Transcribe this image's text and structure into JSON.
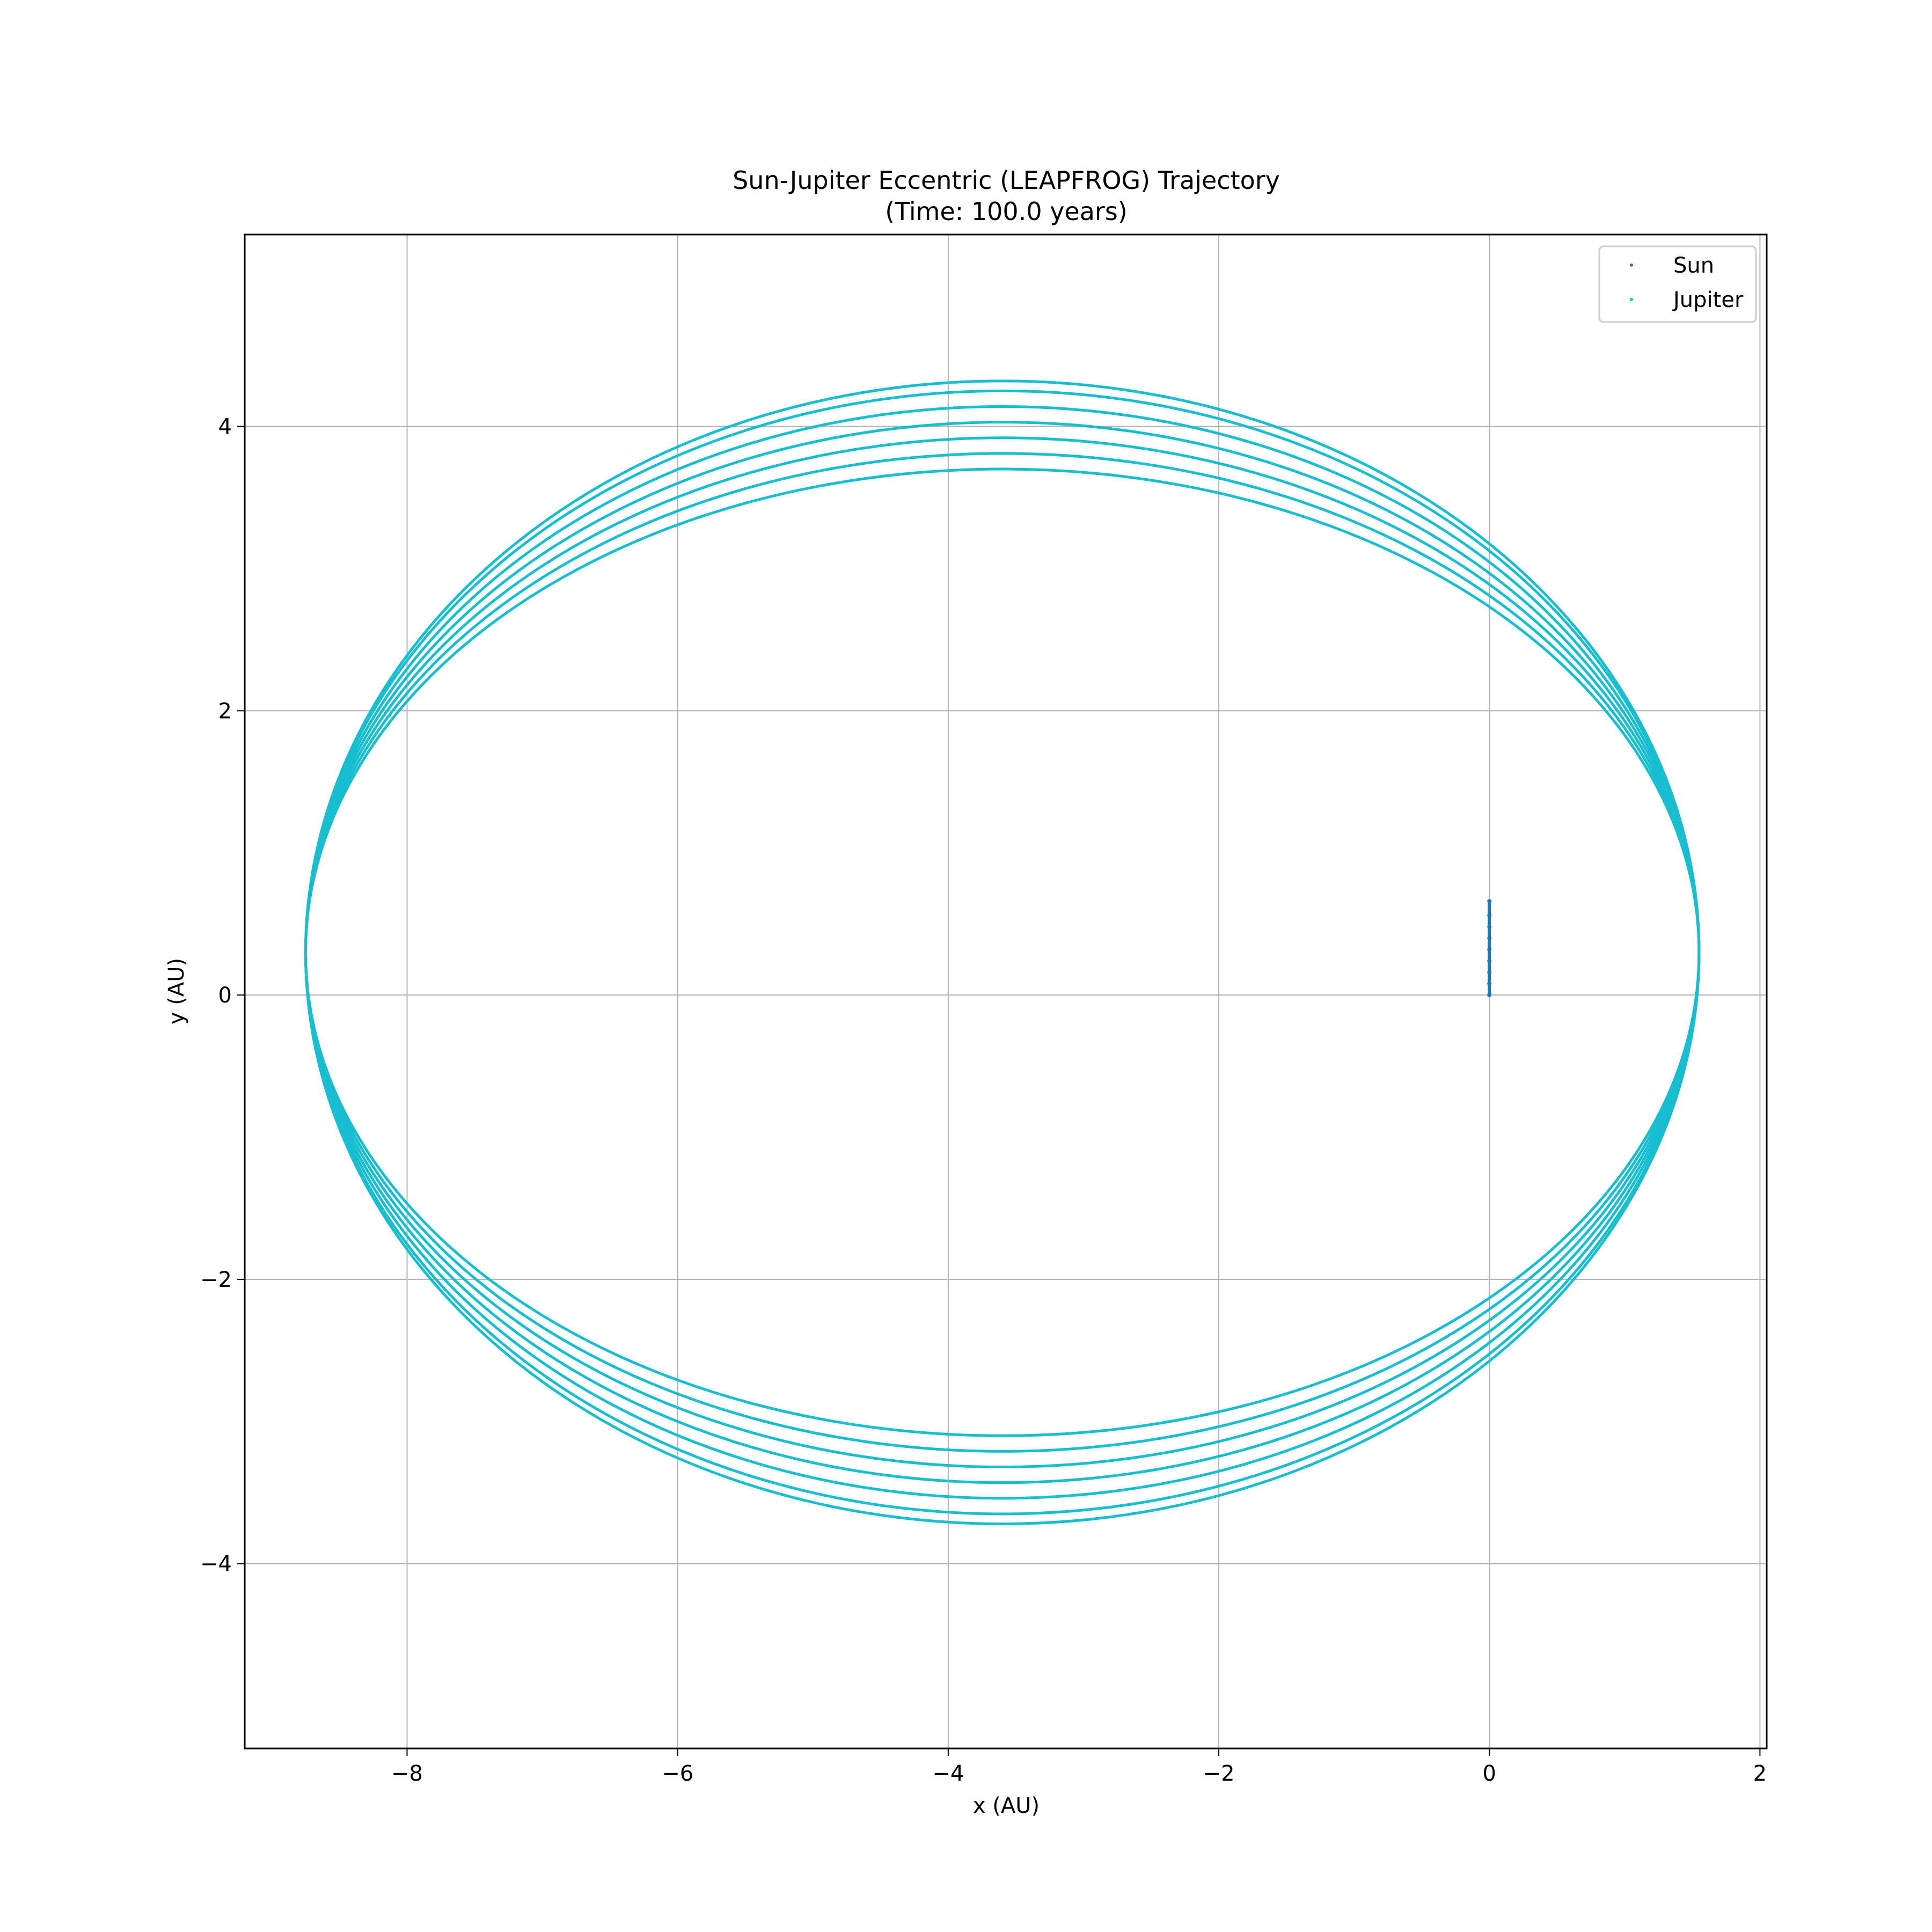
{
  "chart_data": {
    "type": "scatter",
    "title": "Sun-Jupiter Eccentric (LEAPFROG) Trajectory",
    "subtitle": "(Time: 100.0 years)",
    "xlabel": "x (AU)",
    "ylabel": "y (AU)",
    "xlim": [
      -9.2,
      2.05
    ],
    "ylim": [
      -5.3,
      5.35
    ],
    "xticks": [
      -8,
      -6,
      -4,
      -2,
      0,
      2
    ],
    "yticks": [
      -4,
      -2,
      0,
      2,
      4
    ],
    "xtick_labels": [
      "−8",
      "−6",
      "−4",
      "−2",
      "0",
      "2"
    ],
    "ytick_labels": [
      "−4",
      "−2",
      "0",
      "2",
      "4"
    ],
    "grid": true,
    "legend_position": "top-right",
    "series": [
      {
        "name": "Sun",
        "color": "#1f77b4",
        "marker": "point",
        "x": [
          0.0,
          0.0,
          0.0,
          0.0,
          0.0,
          0.0,
          0.0,
          0.0,
          0.0
        ],
        "y": [
          0.0,
          0.08,
          0.16,
          0.24,
          0.32,
          0.4,
          0.48,
          0.56,
          0.66
        ]
      },
      {
        "name": "Jupiter",
        "color": "#17becf",
        "marker": "point",
        "orbits": [
          {
            "cx": -3.6,
            "cy": 0.3,
            "rx": 5.15,
            "ry": 3.4
          },
          {
            "cx": -3.6,
            "cy": 0.3,
            "rx": 5.15,
            "ry": 3.51
          },
          {
            "cx": -3.6,
            "cy": 0.3,
            "rx": 5.15,
            "ry": 3.62
          },
          {
            "cx": -3.6,
            "cy": 0.3,
            "rx": 5.15,
            "ry": 3.73
          },
          {
            "cx": -3.6,
            "cy": 0.3,
            "rx": 5.15,
            "ry": 3.84
          },
          {
            "cx": -3.6,
            "cy": 0.3,
            "rx": 5.15,
            "ry": 3.95
          },
          {
            "cx": -3.6,
            "cy": 0.3,
            "rx": 5.15,
            "ry": 4.02
          }
        ]
      }
    ]
  }
}
